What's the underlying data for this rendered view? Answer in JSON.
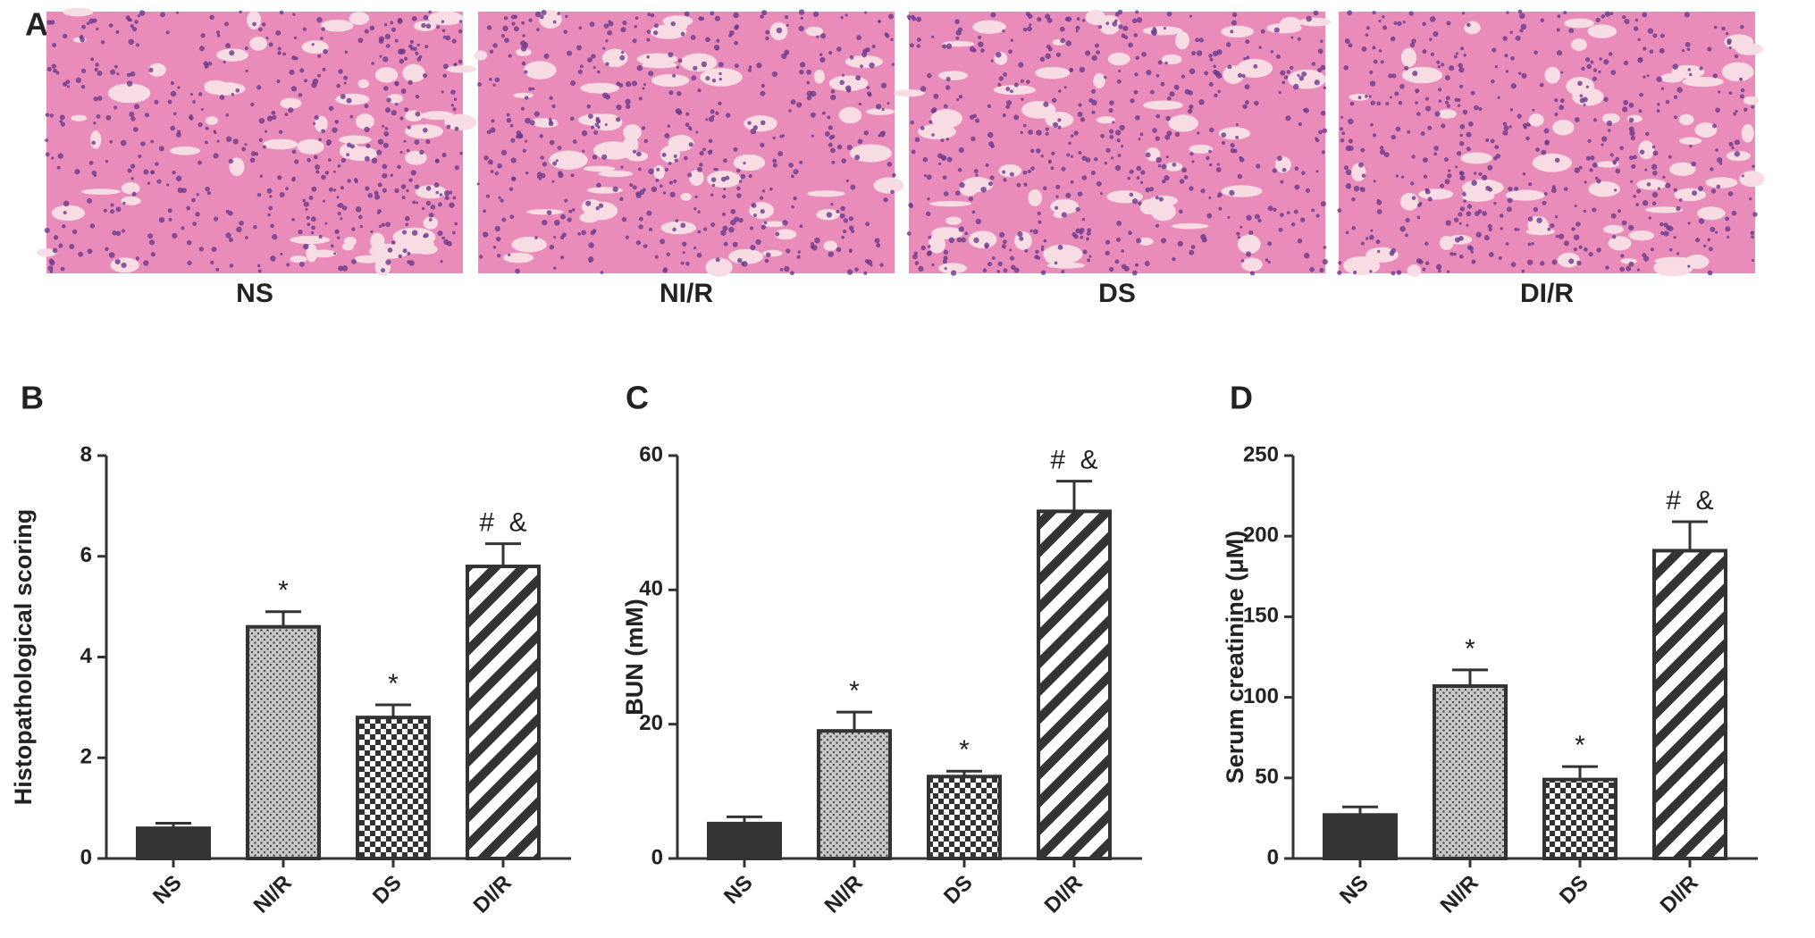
{
  "panel_a": {
    "label": "A",
    "images": [
      {
        "label": "NS"
      },
      {
        "label": "NI/R"
      },
      {
        "label": "DS"
      },
      {
        "label": "DI/R"
      }
    ]
  },
  "chart_data": [
    {
      "type": "bar",
      "panel": "B",
      "ylabel": "Histopathological scoring",
      "categories": [
        "NS",
        "NI/R",
        "DS",
        "DI/R"
      ],
      "values": [
        0.6,
        4.6,
        2.8,
        5.8
      ],
      "errors": [
        0.1,
        0.3,
        0.25,
        0.45
      ],
      "fills": [
        "solid",
        "dots",
        "checker",
        "stripes"
      ],
      "annotations": [
        {
          "index": 1,
          "text": "*"
        },
        {
          "index": 2,
          "text": "*"
        },
        {
          "index": 3,
          "text": "#  &"
        }
      ],
      "ylim": [
        0,
        8
      ],
      "yticks": [
        0,
        2,
        4,
        6,
        8
      ]
    },
    {
      "type": "bar",
      "panel": "C",
      "ylabel": "BUN (mM)",
      "categories": [
        "NS",
        "NI/R",
        "DS",
        "DI/R"
      ],
      "values": [
        5.2,
        19,
        12.2,
        51.7
      ],
      "errors": [
        1,
        2.8,
        0.8,
        4.5
      ],
      "fills": [
        "solid",
        "dots",
        "checker",
        "stripes"
      ],
      "annotations": [
        {
          "index": 1,
          "text": "*"
        },
        {
          "index": 2,
          "text": "*"
        },
        {
          "index": 3,
          "text": "#  &"
        }
      ],
      "ylim": [
        0,
        60
      ],
      "yticks": [
        0,
        20,
        40,
        60
      ]
    },
    {
      "type": "bar",
      "panel": "D",
      "ylabel": "Serum creatinine (μM)",
      "categories": [
        "NS",
        "NI/R",
        "DS",
        "DI/R"
      ],
      "values": [
        27,
        107,
        49,
        191
      ],
      "errors": [
        5,
        10,
        8,
        18
      ],
      "fills": [
        "solid",
        "dots",
        "checker",
        "stripes"
      ],
      "annotations": [
        {
          "index": 1,
          "text": "*"
        },
        {
          "index": 2,
          "text": "*"
        },
        {
          "index": 3,
          "text": "#  &"
        }
      ],
      "ylim": [
        0,
        250
      ],
      "yticks": [
        0,
        50,
        100,
        150,
        200,
        250
      ]
    }
  ]
}
